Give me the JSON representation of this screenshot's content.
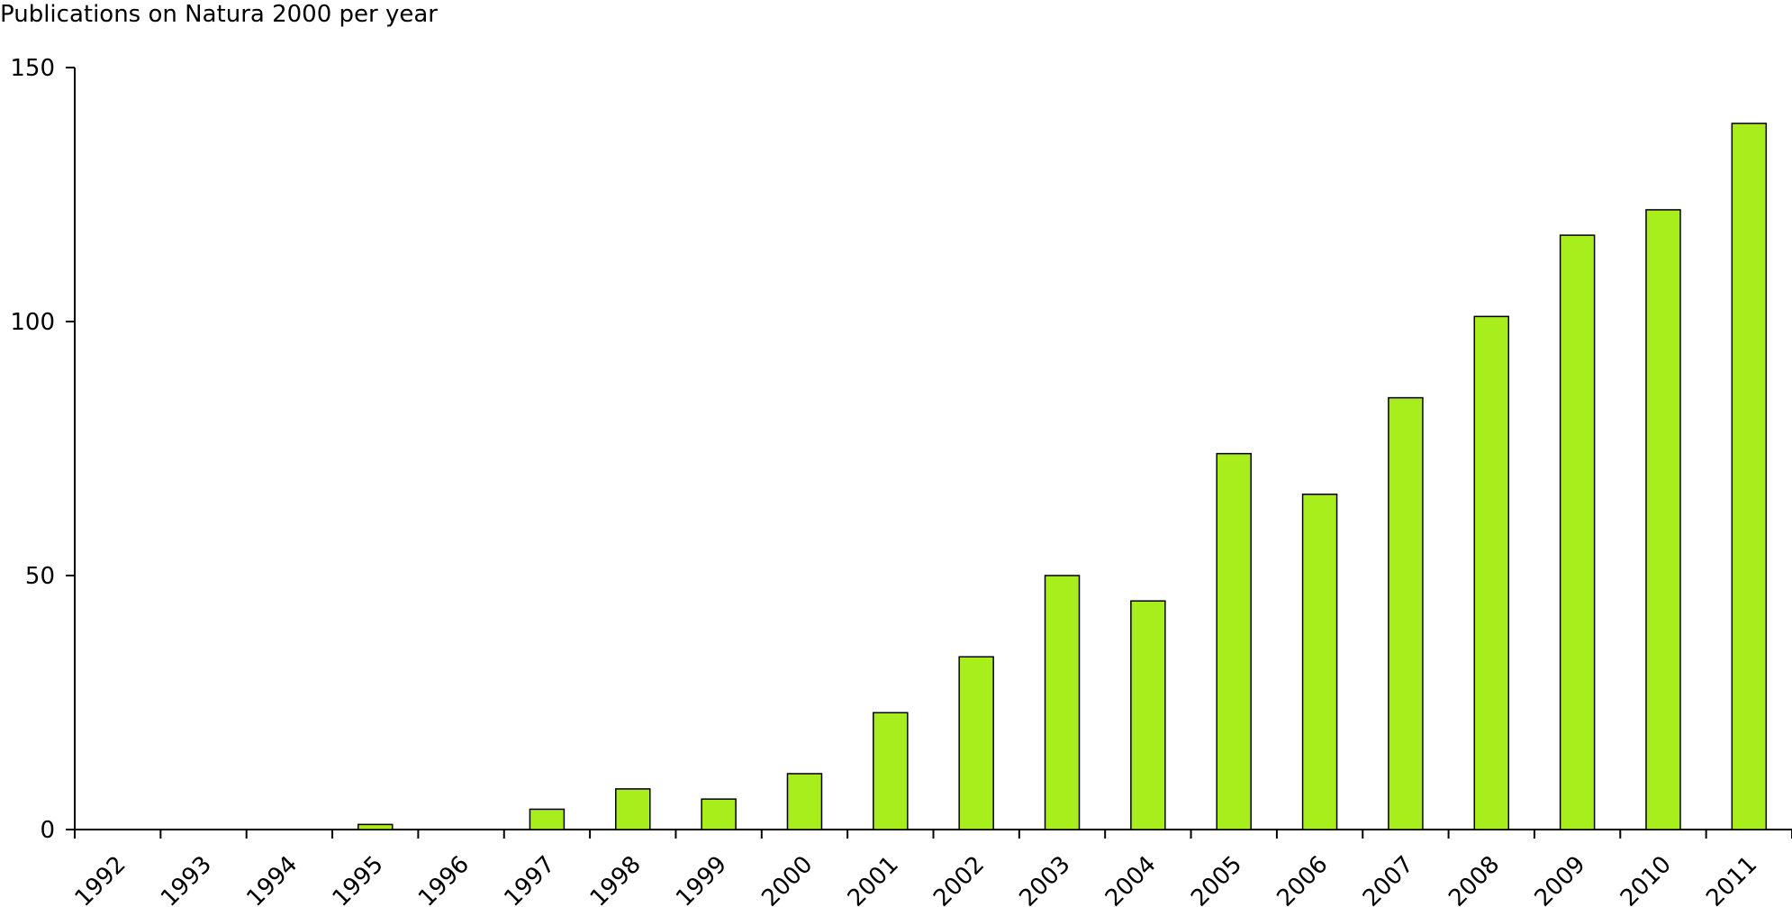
{
  "chart_data": {
    "type": "bar",
    "title": "Publications on Natura 2000 per year",
    "xlabel": "",
    "ylabel": "",
    "categories": [
      "1992",
      "1993",
      "1994",
      "1995",
      "1996",
      "1997",
      "1998",
      "1999",
      "2000",
      "2001",
      "2002",
      "2003",
      "2004",
      "2005",
      "2006",
      "2007",
      "2008",
      "2009",
      "2010",
      "2011"
    ],
    "values": [
      0,
      0,
      0,
      1,
      0,
      4,
      8,
      6,
      11,
      23,
      34,
      50,
      45,
      74,
      66,
      85,
      101,
      117,
      122,
      139
    ],
    "ylim": [
      0,
      150
    ],
    "yticks": [
      0,
      50,
      100,
      150
    ],
    "grid": false,
    "legend": "none",
    "colors": {
      "bar_fill": "#a8ed1c",
      "bar_stroke": "#000000",
      "axis": "#000000"
    }
  }
}
